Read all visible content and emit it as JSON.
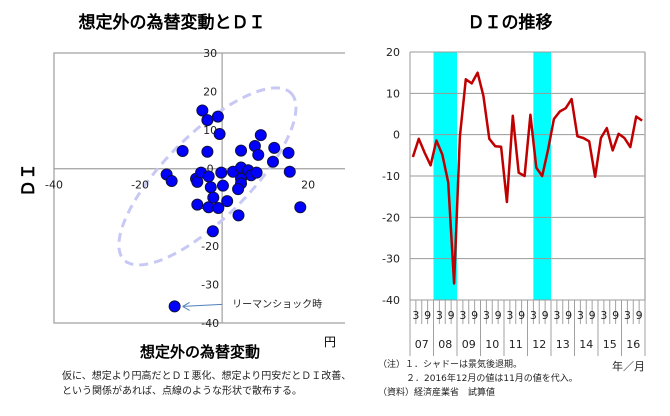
{
  "chart_data": [
    {
      "type": "scatter",
      "title": "想定外の為替変動とＤＩ",
      "xlabel": "想定外の為替変動",
      "ylabel": "ＤＩ",
      "x_unit": "円",
      "xlim": [
        -40,
        29
      ],
      "ylim": [
        -40,
        30
      ],
      "x_ticks": [
        "-40",
        "-20",
        "0",
        "20"
      ],
      "y_ticks": [
        "30",
        "20",
        "10",
        "0",
        "-10",
        "-20",
        "-30",
        "-40"
      ],
      "grid": false,
      "point_color": "#0000ff",
      "ellipse_color": "#c8c8f5",
      "points": [
        {
          "x": -4.7,
          "y": 15.1
        },
        {
          "x": -3.5,
          "y": 12.6
        },
        {
          "x": -1.0,
          "y": 13.5
        },
        {
          "x": -0.6,
          "y": 9.0
        },
        {
          "x": -9.4,
          "y": 4.6
        },
        {
          "x": -3.5,
          "y": 4.4
        },
        {
          "x": 4.5,
          "y": 4.7
        },
        {
          "x": 7.8,
          "y": 5.9
        },
        {
          "x": 9.2,
          "y": 8.7
        },
        {
          "x": 8.6,
          "y": 3.6
        },
        {
          "x": 12.4,
          "y": 5.4
        },
        {
          "x": 12.1,
          "y": 1.8
        },
        {
          "x": 15.8,
          "y": 4.1
        },
        {
          "x": 16.1,
          "y": -0.8
        },
        {
          "x": -13.2,
          "y": -1.5
        },
        {
          "x": -12.0,
          "y": -3.2
        },
        {
          "x": -6.2,
          "y": -2.6
        },
        {
          "x": -5.9,
          "y": -3.4
        },
        {
          "x": -5.0,
          "y": -1.0
        },
        {
          "x": -3.2,
          "y": -2.0
        },
        {
          "x": -0.2,
          "y": -1.0
        },
        {
          "x": -2.7,
          "y": -4.8
        },
        {
          "x": 0.2,
          "y": -4.4
        },
        {
          "x": 2.6,
          "y": -0.8
        },
        {
          "x": 4.5,
          "y": 0.3
        },
        {
          "x": 6.2,
          "y": -0.4
        },
        {
          "x": 6.9,
          "y": -1.7
        },
        {
          "x": 8.2,
          "y": -1.0
        },
        {
          "x": 4.5,
          "y": -2.6
        },
        {
          "x": 4.5,
          "y": -3.8
        },
        {
          "x": 3.8,
          "y": -5.3
        },
        {
          "x": -2.1,
          "y": -7.5
        },
        {
          "x": 1.2,
          "y": -8.4
        },
        {
          "x": -5.9,
          "y": -9.3
        },
        {
          "x": -3.2,
          "y": -10.0
        },
        {
          "x": -0.9,
          "y": -10.2
        },
        {
          "x": 3.9,
          "y": -12.1
        },
        {
          "x": 18.6,
          "y": -10.0
        },
        {
          "x": -2.2,
          "y": -16.2
        },
        {
          "x": -11.3,
          "y": -35.7
        }
      ],
      "annotation": {
        "text": "リーマンショック時",
        "x": -11.3,
        "y": -35.7
      },
      "caption": [
        "仮に、想定より円高だとＤＩ悪化、想定より円安だとＤＩ改善、",
        "という関係があれば、点線のような形状で散布する。"
      ]
    },
    {
      "type": "line",
      "title": "ＤＩの推移",
      "xlabel": "年／月",
      "ylabel": "",
      "ylim": [
        -40,
        20
      ],
      "y_ticks": [
        "20",
        "10",
        "0",
        "-10",
        "-20",
        "-30",
        "-40"
      ],
      "grid": true,
      "line_color": "#c00000",
      "shade_color": "#00ffff",
      "month_labels": [
        "3",
        "9"
      ],
      "year_labels": [
        "07",
        "08",
        "09",
        "10",
        "11",
        "12",
        "13",
        "14",
        "15",
        "16"
      ],
      "shaded_periods": [
        {
          "start_index": 4,
          "end_index": 8
        },
        {
          "start_index": 21,
          "end_index": 24
        }
      ],
      "series": [
        {
          "name": "DI",
          "values": [
            -5.4,
            -1.0,
            -4.4,
            -7.4,
            -1.4,
            -4.8,
            -11.5,
            -36.0,
            -0.4,
            13.4,
            12.4,
            15.0,
            9.4,
            -1.0,
            -2.8,
            -2.9,
            -16.3,
            4.6,
            -9.2,
            -10.0,
            4.8,
            -8.0,
            -10.0,
            -3.6,
            3.8,
            5.6,
            6.4,
            8.6,
            -0.4,
            -0.8,
            -1.6,
            -10.2,
            -0.8,
            1.6,
            -3.8,
            0.2,
            -0.8,
            -3.0,
            4.4,
            3.4
          ]
        }
      ],
      "notes": [
        "（注）１．シャドーは景気後退期。",
        "２．2016年12月の値は11月の値を代入。",
        "（資料）経済産業省　試算値"
      ]
    }
  ]
}
